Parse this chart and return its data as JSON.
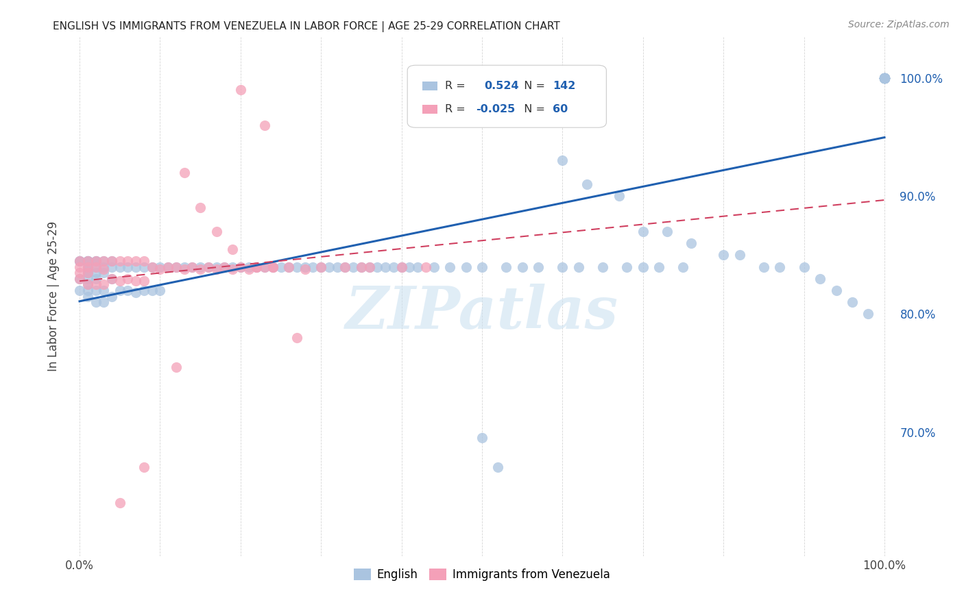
{
  "title": "ENGLISH VS IMMIGRANTS FROM VENEZUELA IN LABOR FORCE | AGE 25-29 CORRELATION CHART",
  "source": "Source: ZipAtlas.com",
  "ylabel": "In Labor Force | Age 25-29",
  "english_color": "#aac4e0",
  "venezuela_color": "#f4a0b8",
  "english_line_color": "#2060b0",
  "venezuela_line_color": "#d04060",
  "watermark_color": "#c8dff0",
  "background_color": "#ffffff",
  "grid_color": "#cccccc",
  "right_tick_color": "#2060b0",
  "ylim_low": 0.595,
  "ylim_high": 1.035,
  "english_x": [
    0.0,
    0.0,
    0.0,
    0.0,
    0.01,
    0.01,
    0.01,
    0.01,
    0.01,
    0.01,
    0.01,
    0.01,
    0.01,
    0.01,
    0.01,
    0.01,
    0.02,
    0.02,
    0.02,
    0.02,
    0.02,
    0.02,
    0.02,
    0.03,
    0.03,
    0.03,
    0.03,
    0.03,
    0.04,
    0.04,
    0.04,
    0.04,
    0.05,
    0.05,
    0.06,
    0.06,
    0.07,
    0.07,
    0.08,
    0.08,
    0.09,
    0.09,
    0.1,
    0.1,
    0.11,
    0.12,
    0.13,
    0.14,
    0.15,
    0.16,
    0.17,
    0.18,
    0.19,
    0.2,
    0.21,
    0.22,
    0.23,
    0.24,
    0.25,
    0.26,
    0.27,
    0.28,
    0.29,
    0.3,
    0.31,
    0.32,
    0.33,
    0.34,
    0.35,
    0.36,
    0.37,
    0.38,
    0.39,
    0.4,
    0.41,
    0.42,
    0.44,
    0.46,
    0.48,
    0.5,
    0.53,
    0.55,
    0.57,
    0.6,
    0.62,
    0.65,
    0.68,
    0.7,
    0.72,
    0.75,
    0.6,
    0.63,
    0.67,
    0.7,
    0.73,
    0.76,
    0.8,
    0.82,
    0.85,
    0.87,
    0.9,
    0.92,
    0.94,
    0.96,
    0.98,
    1.0,
    1.0,
    1.0,
    1.0,
    1.0,
    1.0,
    1.0,
    1.0,
    1.0,
    1.0,
    1.0,
    1.0,
    1.0,
    1.0,
    1.0,
    1.0,
    1.0,
    1.0,
    1.0,
    1.0,
    1.0,
    1.0,
    1.0,
    1.0,
    1.0,
    1.0,
    1.0,
    1.0,
    1.0,
    1.0,
    1.0,
    1.0,
    1.0,
    0.5,
    0.52
  ],
  "english_y": [
    0.845,
    0.845,
    0.83,
    0.82,
    0.845,
    0.845,
    0.845,
    0.845,
    0.84,
    0.84,
    0.835,
    0.835,
    0.83,
    0.825,
    0.82,
    0.815,
    0.845,
    0.845,
    0.84,
    0.835,
    0.83,
    0.82,
    0.81,
    0.845,
    0.84,
    0.835,
    0.82,
    0.81,
    0.845,
    0.84,
    0.83,
    0.815,
    0.84,
    0.82,
    0.84,
    0.82,
    0.84,
    0.818,
    0.84,
    0.82,
    0.84,
    0.82,
    0.84,
    0.82,
    0.84,
    0.84,
    0.84,
    0.84,
    0.84,
    0.84,
    0.84,
    0.84,
    0.84,
    0.84,
    0.84,
    0.84,
    0.84,
    0.84,
    0.84,
    0.84,
    0.84,
    0.84,
    0.84,
    0.84,
    0.84,
    0.84,
    0.84,
    0.84,
    0.84,
    0.84,
    0.84,
    0.84,
    0.84,
    0.84,
    0.84,
    0.84,
    0.84,
    0.84,
    0.84,
    0.84,
    0.84,
    0.84,
    0.84,
    0.84,
    0.84,
    0.84,
    0.84,
    0.84,
    0.84,
    0.84,
    0.93,
    0.91,
    0.9,
    0.87,
    0.87,
    0.86,
    0.85,
    0.85,
    0.84,
    0.84,
    0.84,
    0.83,
    0.82,
    0.81,
    0.8,
    1.0,
    1.0,
    1.0,
    1.0,
    1.0,
    1.0,
    1.0,
    1.0,
    1.0,
    1.0,
    1.0,
    1.0,
    1.0,
    1.0,
    1.0,
    1.0,
    1.0,
    1.0,
    1.0,
    1.0,
    1.0,
    1.0,
    1.0,
    1.0,
    1.0,
    1.0,
    1.0,
    1.0,
    1.0,
    1.0,
    1.0,
    1.0,
    1.0,
    0.695,
    0.67
  ],
  "venezuela_x": [
    0.0,
    0.0,
    0.0,
    0.0,
    0.01,
    0.01,
    0.01,
    0.01,
    0.02,
    0.02,
    0.02,
    0.03,
    0.03,
    0.03,
    0.04,
    0.04,
    0.05,
    0.05,
    0.06,
    0.06,
    0.07,
    0.07,
    0.08,
    0.08,
    0.09,
    0.1,
    0.11,
    0.12,
    0.13,
    0.14,
    0.15,
    0.16,
    0.17,
    0.18,
    0.19,
    0.2,
    0.21,
    0.22,
    0.23,
    0.24,
    0.13,
    0.15,
    0.17,
    0.19,
    0.22,
    0.24,
    0.26,
    0.28,
    0.3,
    0.33,
    0.36,
    0.2,
    0.23,
    0.4,
    0.43,
    0.35,
    0.27,
    0.12,
    0.08,
    0.05
  ],
  "venezuela_y": [
    0.845,
    0.84,
    0.835,
    0.83,
    0.845,
    0.84,
    0.835,
    0.825,
    0.845,
    0.84,
    0.825,
    0.845,
    0.838,
    0.825,
    0.845,
    0.83,
    0.845,
    0.828,
    0.845,
    0.83,
    0.845,
    0.828,
    0.845,
    0.828,
    0.84,
    0.838,
    0.84,
    0.84,
    0.838,
    0.84,
    0.838,
    0.84,
    0.838,
    0.84,
    0.838,
    0.84,
    0.838,
    0.84,
    0.84,
    0.84,
    0.92,
    0.89,
    0.87,
    0.855,
    0.84,
    0.84,
    0.84,
    0.838,
    0.84,
    0.84,
    0.84,
    0.99,
    0.96,
    0.84,
    0.84,
    0.84,
    0.78,
    0.755,
    0.67,
    0.64
  ]
}
